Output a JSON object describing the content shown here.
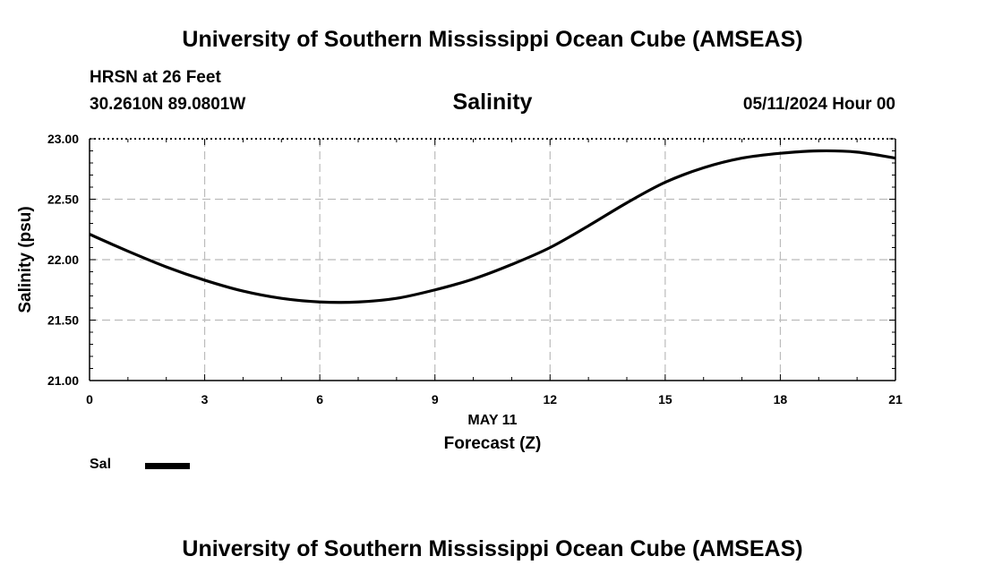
{
  "header": {
    "title": "University of Southern Mississippi Ocean Cube (AMSEAS)",
    "station": "HRSN at 26 Feet",
    "coordinates": "30.2610N  89.0801W",
    "parameter": "Salinity",
    "timestamp": "05/11/2024 Hour 00"
  },
  "footer": {
    "title": "University of Southern Mississippi Ocean Cube (AMSEAS)"
  },
  "legend": {
    "label": "Sal"
  },
  "colors": {
    "line": "#000000",
    "grid": "#bbbbbb"
  },
  "chart_data": {
    "type": "line",
    "title": "Salinity",
    "xlabel": "Forecast (Z)",
    "xlabel_date": "MAY 11",
    "ylabel": "Salinity (psu)",
    "xlim": [
      0,
      21
    ],
    "ylim": [
      21.0,
      23.0
    ],
    "x_ticks": [
      "0",
      "3",
      "6",
      "9",
      "12",
      "15",
      "18",
      "21"
    ],
    "y_ticks": [
      "21.00",
      "21.50",
      "22.00",
      "22.50",
      "23.00"
    ],
    "grid": true,
    "series": [
      {
        "name": "Sal",
        "x": [
          0,
          1,
          2,
          3,
          4,
          5,
          6,
          7,
          8,
          9,
          10,
          11,
          12,
          13,
          14,
          15,
          16,
          17,
          18,
          19,
          20,
          21
        ],
        "values": [
          22.21,
          22.07,
          21.94,
          21.83,
          21.74,
          21.68,
          21.65,
          21.65,
          21.68,
          21.75,
          21.84,
          21.96,
          22.1,
          22.28,
          22.47,
          22.64,
          22.76,
          22.84,
          22.88,
          22.9,
          22.89,
          22.84
        ]
      }
    ]
  }
}
